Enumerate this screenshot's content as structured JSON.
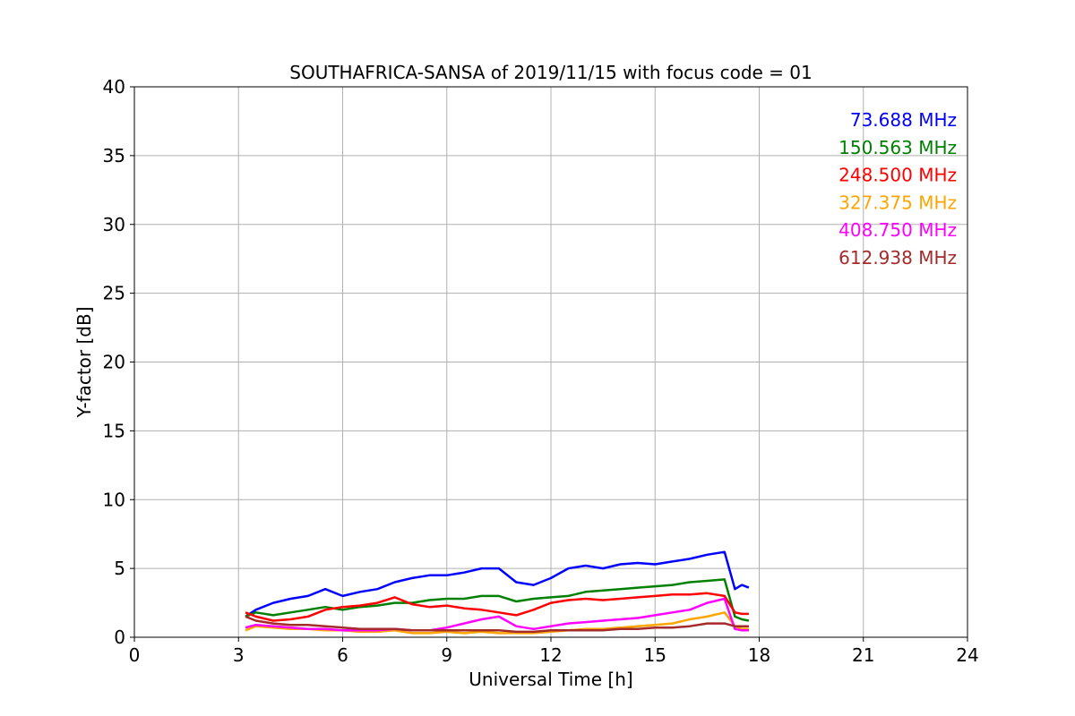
{
  "chart_data": {
    "type": "line",
    "title": "SOUTHAFRICA-SANSA of 2019/11/15 with focus code = 01",
    "xlabel": "Universal Time [h]",
    "ylabel": "Y-factor [dB]",
    "xlim": [
      0,
      24
    ],
    "ylim": [
      0,
      40
    ],
    "xticks": [
      0,
      3,
      6,
      9,
      12,
      15,
      18,
      21,
      24
    ],
    "yticks": [
      0,
      5,
      10,
      15,
      20,
      25,
      30,
      35,
      40
    ],
    "grid": true,
    "legend_position": "top-right",
    "series": [
      {
        "name": "73.688 MHz",
        "color": "#0000ff",
        "x": [
          3.2,
          3.5,
          4.0,
          4.5,
          5.0,
          5.5,
          6.0,
          6.5,
          7.0,
          7.5,
          8.0,
          8.5,
          9.0,
          9.5,
          10.0,
          10.5,
          11.0,
          11.5,
          12.0,
          12.5,
          13.0,
          13.5,
          14.0,
          14.5,
          15.0,
          15.5,
          16.0,
          16.5,
          17.0,
          17.3,
          17.5,
          17.7
        ],
        "y": [
          1.5,
          2.0,
          2.5,
          2.8,
          3.0,
          3.5,
          3.0,
          3.3,
          3.5,
          4.0,
          4.3,
          4.5,
          4.5,
          4.7,
          5.0,
          5.0,
          4.0,
          3.8,
          4.3,
          5.0,
          5.2,
          5.0,
          5.3,
          5.4,
          5.3,
          5.5,
          5.7,
          6.0,
          6.2,
          3.5,
          3.8,
          3.6
        ]
      },
      {
        "name": "150.563 MHz",
        "color": "#008000",
        "x": [
          3.2,
          3.5,
          4.0,
          4.5,
          5.0,
          5.5,
          6.0,
          6.5,
          7.0,
          7.5,
          8.0,
          8.5,
          9.0,
          9.5,
          10.0,
          10.5,
          11.0,
          11.5,
          12.0,
          12.5,
          13.0,
          13.5,
          14.0,
          14.5,
          15.0,
          15.5,
          16.0,
          16.5,
          17.0,
          17.3,
          17.5,
          17.7
        ],
        "y": [
          1.5,
          1.8,
          1.6,
          1.8,
          2.0,
          2.2,
          2.0,
          2.2,
          2.3,
          2.5,
          2.5,
          2.7,
          2.8,
          2.8,
          3.0,
          3.0,
          2.6,
          2.8,
          2.9,
          3.0,
          3.3,
          3.4,
          3.5,
          3.6,
          3.7,
          3.8,
          4.0,
          4.1,
          4.2,
          1.5,
          1.3,
          1.2
        ]
      },
      {
        "name": "248.500 MHz",
        "color": "#ff0000",
        "x": [
          3.2,
          3.5,
          4.0,
          4.5,
          5.0,
          5.5,
          6.0,
          6.5,
          7.0,
          7.5,
          8.0,
          8.5,
          9.0,
          9.5,
          10.0,
          10.5,
          11.0,
          11.5,
          12.0,
          12.5,
          13.0,
          13.5,
          14.0,
          14.5,
          15.0,
          15.5,
          16.0,
          16.5,
          17.0,
          17.3,
          17.5,
          17.7
        ],
        "y": [
          1.8,
          1.5,
          1.2,
          1.3,
          1.5,
          2.0,
          2.2,
          2.3,
          2.5,
          2.9,
          2.4,
          2.2,
          2.3,
          2.1,
          2.0,
          1.8,
          1.6,
          2.0,
          2.5,
          2.7,
          2.8,
          2.7,
          2.8,
          2.9,
          3.0,
          3.1,
          3.1,
          3.2,
          3.0,
          1.8,
          1.7,
          1.7
        ]
      },
      {
        "name": "327.375 MHz",
        "color": "#ffa500",
        "x": [
          3.2,
          3.5,
          4.0,
          4.5,
          5.0,
          5.5,
          6.0,
          6.5,
          7.0,
          7.5,
          8.0,
          8.5,
          9.0,
          9.5,
          10.0,
          10.5,
          11.0,
          11.5,
          12.0,
          12.5,
          13.0,
          13.5,
          14.0,
          14.5,
          15.0,
          15.5,
          16.0,
          16.5,
          17.0,
          17.3,
          17.5,
          17.7
        ],
        "y": [
          0.5,
          0.8,
          0.7,
          0.6,
          0.6,
          0.5,
          0.5,
          0.4,
          0.4,
          0.5,
          0.3,
          0.3,
          0.4,
          0.3,
          0.4,
          0.3,
          0.3,
          0.3,
          0.4,
          0.5,
          0.6,
          0.6,
          0.7,
          0.8,
          0.9,
          1.0,
          1.3,
          1.5,
          1.8,
          0.8,
          0.6,
          0.6
        ]
      },
      {
        "name": "408.750 MHz",
        "color": "#ff00ff",
        "x": [
          3.2,
          3.5,
          4.0,
          4.5,
          5.0,
          5.5,
          6.0,
          6.5,
          7.0,
          7.5,
          8.0,
          8.5,
          9.0,
          9.5,
          10.0,
          10.5,
          11.0,
          11.5,
          12.0,
          12.5,
          13.0,
          13.5,
          14.0,
          14.5,
          15.0,
          15.5,
          16.0,
          16.5,
          17.0,
          17.3,
          17.5,
          17.7
        ],
        "y": [
          0.7,
          0.9,
          0.8,
          0.7,
          0.6,
          0.6,
          0.5,
          0.5,
          0.5,
          0.6,
          0.5,
          0.5,
          0.7,
          1.0,
          1.3,
          1.5,
          0.8,
          0.6,
          0.8,
          1.0,
          1.1,
          1.2,
          1.3,
          1.4,
          1.6,
          1.8,
          2.0,
          2.5,
          2.8,
          0.6,
          0.5,
          0.5
        ]
      },
      {
        "name": "612.938 MHz",
        "color": "#a52a2a",
        "x": [
          3.2,
          3.5,
          4.0,
          4.5,
          5.0,
          5.5,
          6.0,
          6.5,
          7.0,
          7.5,
          8.0,
          8.5,
          9.0,
          9.5,
          10.0,
          10.5,
          11.0,
          11.5,
          12.0,
          12.5,
          13.0,
          13.5,
          14.0,
          14.5,
          15.0,
          15.5,
          16.0,
          16.5,
          17.0,
          17.3,
          17.5,
          17.7
        ],
        "y": [
          1.5,
          1.2,
          1.0,
          0.9,
          0.9,
          0.8,
          0.7,
          0.6,
          0.6,
          0.6,
          0.5,
          0.5,
          0.5,
          0.5,
          0.5,
          0.5,
          0.4,
          0.4,
          0.5,
          0.5,
          0.5,
          0.5,
          0.6,
          0.6,
          0.7,
          0.7,
          0.8,
          1.0,
          1.0,
          0.8,
          0.8,
          0.8
        ]
      }
    ]
  }
}
